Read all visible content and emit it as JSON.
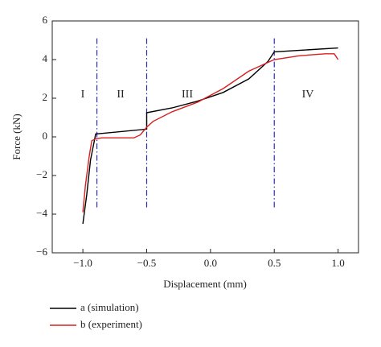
{
  "chart_data": {
    "type": "line",
    "x_label": "Displacement (mm)",
    "y_label": "Force (kN)",
    "xlim": [
      -1.24,
      1.16
    ],
    "ylim": [
      -6,
      6
    ],
    "xticks": [
      {
        "value": -1.0,
        "label": "−1.0"
      },
      {
        "value": -0.5,
        "label": "−0.5"
      },
      {
        "value": 0.0,
        "label": "0.0"
      },
      {
        "value": 0.5,
        "label": "0.5"
      },
      {
        "value": 1.0,
        "label": "1.0"
      }
    ],
    "yticks": [
      {
        "value": -6,
        "label": "−6"
      },
      {
        "value": -4,
        "label": "−4"
      },
      {
        "value": -2,
        "label": "−2"
      },
      0,
      2,
      4,
      6
    ],
    "vlines": [
      -0.89,
      -0.5,
      0.5
    ],
    "vline_color": "#2b2bb5",
    "annotations": [
      "I",
      "II",
      "III",
      "IV"
    ],
    "series": [
      {
        "name": "a (simulation)",
        "color": "#000000",
        "x": [
          -1.0,
          -0.97,
          -0.94,
          -0.91,
          -0.9,
          -0.5,
          -0.5,
          -0.3,
          -0.1,
          0.1,
          0.3,
          0.45,
          0.5,
          1.0
        ],
        "values": [
          -4.5,
          -3.0,
          -1.2,
          -0.2,
          0.15,
          0.4,
          1.25,
          1.5,
          1.85,
          2.3,
          3.0,
          3.9,
          4.4,
          4.6
        ]
      },
      {
        "name": "b (experiment)",
        "color": "#d62020",
        "x": [
          -1.0,
          -0.98,
          -0.95,
          -0.93,
          -0.9,
          -0.85,
          -0.6,
          -0.55,
          -0.5,
          -0.45,
          -0.3,
          -0.1,
          0.1,
          0.3,
          0.5,
          0.7,
          0.9,
          0.97,
          1.0
        ],
        "values": [
          -3.9,
          -2.5,
          -1.0,
          -0.2,
          -0.1,
          -0.05,
          -0.05,
          0.1,
          0.5,
          0.8,
          1.3,
          1.8,
          2.5,
          3.4,
          4.0,
          4.2,
          4.3,
          4.3,
          4.0
        ]
      }
    ]
  }
}
